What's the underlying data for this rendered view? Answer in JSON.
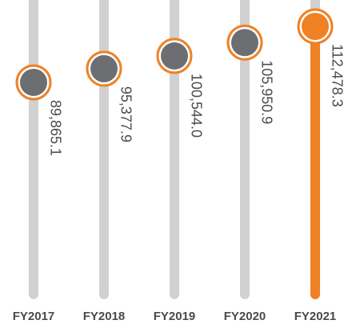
{
  "chart_data": {
    "type": "lollipop",
    "categories": [
      "FY2017",
      "FY2018",
      "FY2019",
      "FY2020",
      "FY2021"
    ],
    "values": [
      89865.1,
      95377.9,
      100544.0,
      105950.9,
      112478.3
    ],
    "value_labels": [
      "89,865.1",
      "95,377.9",
      "100,544.0",
      "105,950.9",
      "112,478.3"
    ],
    "track_color": "#d1d1d1",
    "ring_color": "#f08124",
    "point_colors": [
      "#6d6e71",
      "#6d6e71",
      "#6d6e71",
      "#6d6e71",
      "#f08124"
    ],
    "track_colors": [
      "#d1d1d1",
      "#d1d1d1",
      "#d1d1d1",
      "#d1d1d1",
      "#f08124"
    ]
  }
}
